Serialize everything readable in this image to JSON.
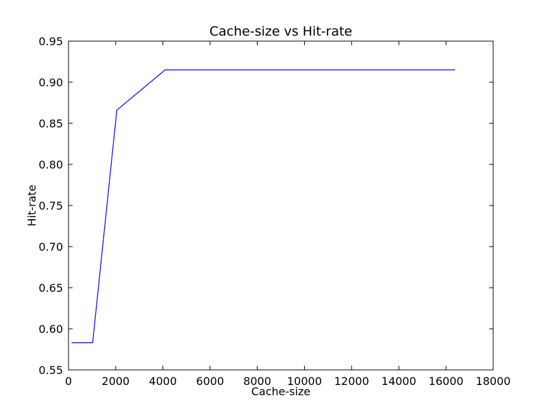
{
  "chart_data": {
    "type": "line",
    "title": "Cache-size vs Hit-rate",
    "xlabel": "Cache-size",
    "ylabel": "Hit-rate",
    "xlim": [
      0,
      18000
    ],
    "ylim": [
      0.55,
      0.95
    ],
    "xticks": [
      0,
      2000,
      4000,
      6000,
      8000,
      10000,
      12000,
      14000,
      16000,
      18000
    ],
    "xtick_labels": [
      "0",
      "2000",
      "4000",
      "6000",
      "8000",
      "10000",
      "12000",
      "14000",
      "16000",
      "18000"
    ],
    "yticks": [
      0.55,
      0.6,
      0.65,
      0.7,
      0.75,
      0.8,
      0.85,
      0.9,
      0.95
    ],
    "ytick_labels": [
      "0.55",
      "0.60",
      "0.65",
      "0.70",
      "0.75",
      "0.80",
      "0.85",
      "0.90",
      "0.95"
    ],
    "grid": false,
    "series": [
      {
        "color": "#0000ff",
        "x": [
          128,
          1024,
          2048,
          4096,
          16384
        ],
        "y": [
          0.583,
          0.583,
          0.866,
          0.915,
          0.915
        ]
      }
    ]
  }
}
